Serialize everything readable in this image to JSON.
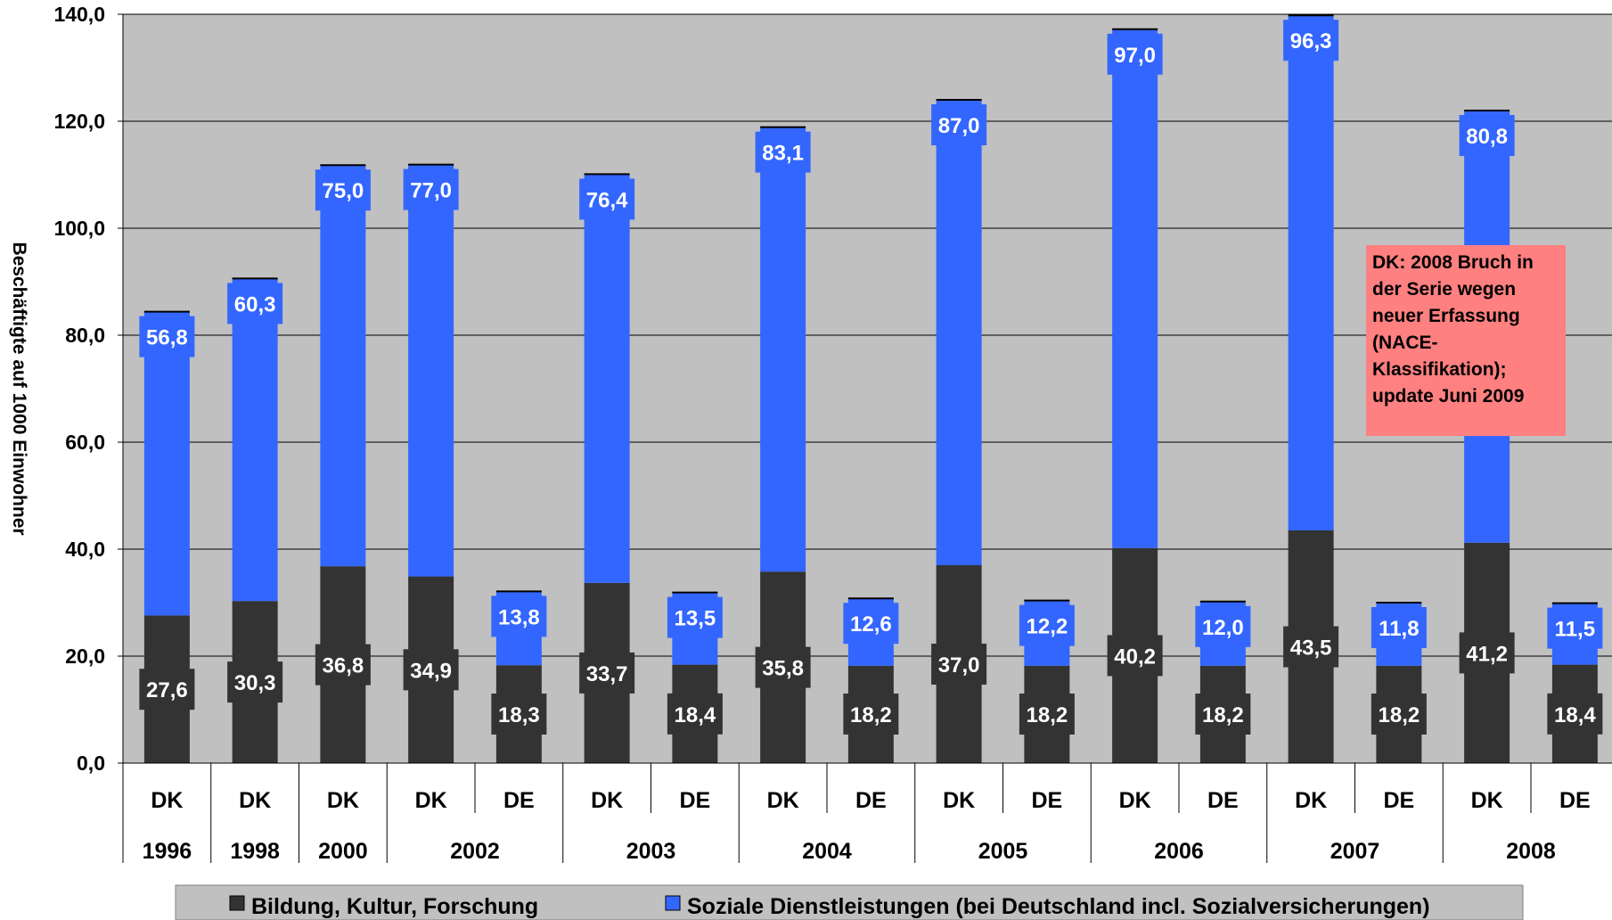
{
  "chart_data": {
    "type": "bar",
    "stacked": true,
    "ylabel": "Beschäftigte auf 1000 Einwohner",
    "ylim": [
      0,
      140
    ],
    "yticks": [
      "0,0",
      "20,0",
      "40,0",
      "60,0",
      "80,0",
      "100,0",
      "120,0",
      "140,0"
    ],
    "grid": true,
    "legend_position": "bottom",
    "categories": [
      "DK",
      "DK",
      "DK",
      "DK",
      "DE",
      "DK",
      "DE",
      "DK",
      "DE",
      "DK",
      "DE",
      "DK",
      "DE",
      "DK",
      "DE",
      "DK",
      "DE"
    ],
    "year_groups": [
      {
        "label": "1996",
        "count": 1
      },
      {
        "label": "1998",
        "count": 1
      },
      {
        "label": "2000",
        "count": 1
      },
      {
        "label": "2002",
        "count": 2
      },
      {
        "label": "2003",
        "count": 2
      },
      {
        "label": "2004",
        "count": 2
      },
      {
        "label": "2005",
        "count": 2
      },
      {
        "label": "2006",
        "count": 2
      },
      {
        "label": "2007",
        "count": 2
      },
      {
        "label": "2008",
        "count": 2
      }
    ],
    "series": [
      {
        "name": "Bildung, Kultur, Forschung",
        "color": "#333333",
        "values": [
          27.6,
          30.3,
          36.8,
          34.9,
          18.3,
          33.7,
          18.4,
          35.8,
          18.2,
          37.0,
          18.2,
          40.2,
          18.2,
          43.5,
          18.2,
          41.2,
          18.4
        ],
        "labels": [
          "27,6",
          "30,3",
          "36,8",
          "34,9",
          "18,3",
          "33,7",
          "18,4",
          "35,8",
          "18,2",
          "37,0",
          "18,2",
          "40,2",
          "18,2",
          "43,5",
          "18,2",
          "41,2",
          "18,4"
        ]
      },
      {
        "name": "Soziale Dienstleistungen (bei Deutschland incl. Sozialversicherungen)",
        "color": "#3366ff",
        "values": [
          56.8,
          60.3,
          75.0,
          77.0,
          13.8,
          76.4,
          13.5,
          83.1,
          12.6,
          87.0,
          12.2,
          97.0,
          12.0,
          96.3,
          11.8,
          80.8,
          11.5
        ],
        "labels": [
          "56,8",
          "60,3",
          "75,0",
          "77,0",
          "13,8",
          "76,4",
          "13,5",
          "83,1",
          "12,6",
          "87,0",
          "12,2",
          "97,0",
          "12,0",
          "96,3",
          "11,8",
          "80,8",
          "11,5"
        ]
      }
    ],
    "annotation": "DK: 2008 Bruch in der Serie wegen neuer Erfassung (NACE-Klassifikation); update Juni 2009",
    "annotation_lines": [
      "DK: 2008 Bruch in",
      "der Serie wegen",
      "neuer Erfassung",
      "(NACE-",
      "Klassifikation);",
      "update Juni 2009"
    ],
    "colors": {
      "plot_background": "#c0c0c0",
      "annotation_background": "#ff8080",
      "label_text": "#ffffff"
    }
  }
}
